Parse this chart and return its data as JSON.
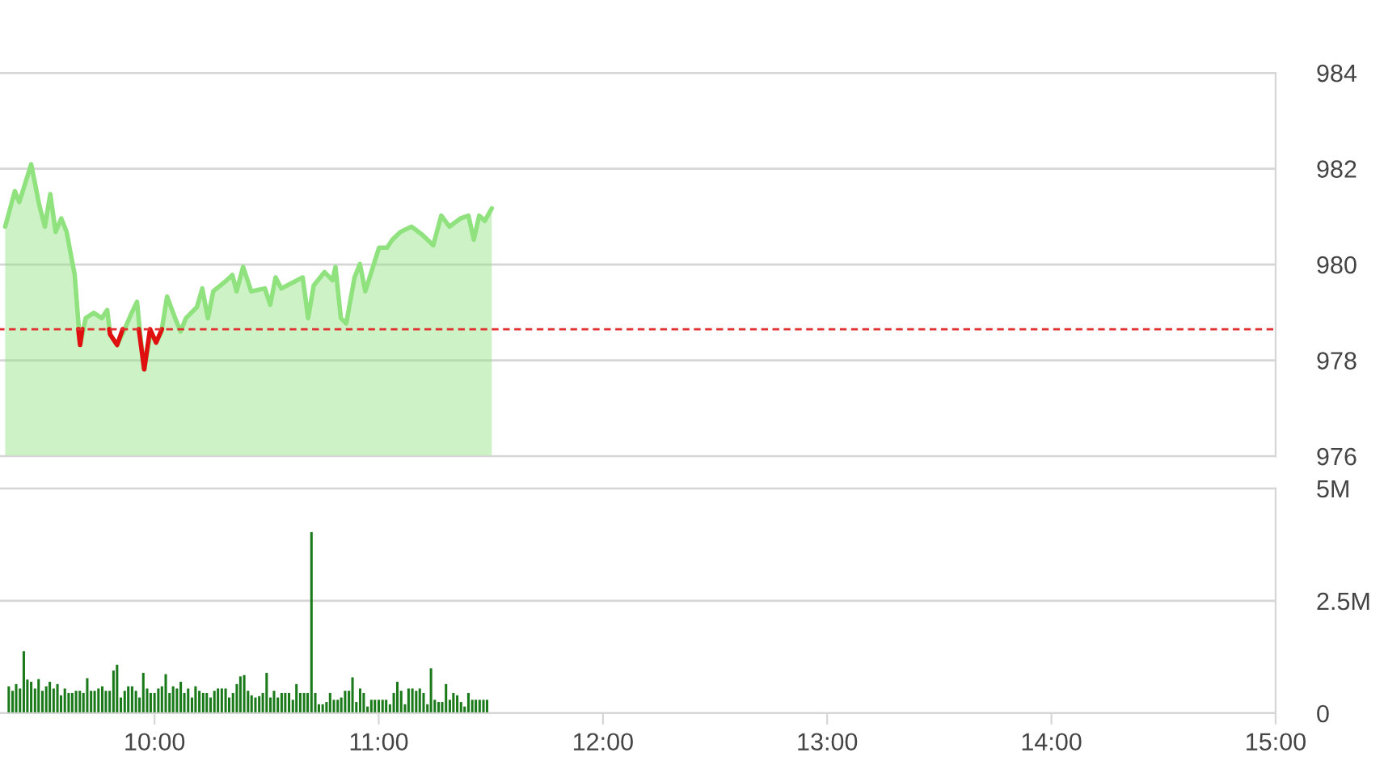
{
  "chart_data": [
    {
      "type": "area",
      "x": [
        9.334,
        9.377,
        9.397,
        9.45,
        9.486,
        9.511,
        9.535,
        9.559,
        9.584,
        9.608,
        9.644,
        9.668,
        9.693,
        9.729,
        9.765,
        9.789,
        9.802,
        9.833,
        9.862,
        9.898,
        9.922,
        9.935,
        9.954,
        9.983,
        10.007,
        10.031,
        10.056,
        10.092,
        10.116,
        10.14,
        10.189,
        10.213,
        10.238,
        10.262,
        10.322,
        10.347,
        10.366,
        10.395,
        10.431,
        10.492,
        10.516,
        10.54,
        10.565,
        10.661,
        10.685,
        10.71,
        10.758,
        10.794,
        10.807,
        10.831,
        10.855,
        10.892,
        10.916,
        10.94,
        11.001,
        11.037,
        11.061,
        11.097,
        11.146,
        11.194,
        11.243,
        11.279,
        11.315,
        11.364,
        11.4,
        11.424,
        11.448,
        11.473,
        11.504
      ],
      "series": [
        {
          "type": "area",
          "color": "#90e27f",
          "values": [
            980.79,
            981.53,
            981.3,
            982.09,
            981.24,
            980.79,
            981.47,
            980.68,
            980.96,
            980.68,
            979.78,
            978.32,
            978.88,
            978.99,
            978.88,
            979.05,
            978.54,
            978.32,
            978.6,
            978.99,
            979.22,
            978.6,
            977.81,
            978.6,
            978.37,
            978.6,
            979.33,
            978.88,
            978.6,
            978.88,
            979.11,
            979.5,
            978.88,
            979.44,
            979.67,
            979.78,
            979.44,
            979.95,
            979.44,
            979.5,
            979.16,
            979.73,
            979.5,
            979.73,
            978.88,
            979.56,
            979.84,
            979.67,
            979.95,
            978.88,
            978.77,
            979.73,
            980.01,
            979.44,
            980.35,
            980.35,
            980.52,
            980.68,
            980.79,
            980.62,
            980.4,
            981.02,
            980.79,
            980.96,
            981.02,
            980.52,
            981.02,
            980.91,
            981.17
          ]
        },
        {
          "type": "line",
          "color": "#e01010",
          "x": [
            9.66,
            9.668,
            9.678,
            9.69,
            9.798,
            9.802,
            9.833,
            9.858,
            9.9,
            9.93,
            9.954,
            9.98,
            10.007,
            10.033
          ],
          "values": [
            978.65,
            978.32,
            978.65,
            null,
            978.65,
            978.54,
            978.32,
            978.65,
            null,
            978.65,
            977.81,
            978.65,
            978.37,
            978.65
          ]
        }
      ],
      "xlim": [
        9.28,
        15
      ],
      "ylim": [
        976,
        984
      ],
      "yticks": [
        976,
        978,
        980,
        982,
        984
      ],
      "tick_labels": "y",
      "grid": "y",
      "ref_lines": [
        {
          "axis": "y",
          "value": 978.65,
          "color": "#e03030",
          "line_style": "dashed"
        }
      ]
    },
    {
      "type": "bar",
      "x": [
        9.35,
        9.367,
        9.383,
        9.4,
        9.417,
        9.433,
        9.45,
        9.467,
        9.483,
        9.5,
        9.517,
        9.533,
        9.55,
        9.567,
        9.583,
        9.6,
        9.617,
        9.633,
        9.65,
        9.667,
        9.683,
        9.7,
        9.717,
        9.733,
        9.75,
        9.767,
        9.783,
        9.8,
        9.817,
        9.833,
        9.85,
        9.867,
        9.883,
        9.9,
        9.917,
        9.933,
        9.95,
        9.967,
        9.983,
        10.0,
        10.017,
        10.033,
        10.05,
        10.067,
        10.083,
        10.1,
        10.117,
        10.133,
        10.15,
        10.167,
        10.183,
        10.2,
        10.217,
        10.233,
        10.25,
        10.267,
        10.283,
        10.3,
        10.317,
        10.333,
        10.35,
        10.367,
        10.383,
        10.4,
        10.417,
        10.433,
        10.45,
        10.467,
        10.483,
        10.5,
        10.517,
        10.533,
        10.55,
        10.567,
        10.583,
        10.6,
        10.617,
        10.633,
        10.65,
        10.667,
        10.683,
        10.7,
        10.717,
        10.733,
        10.75,
        10.767,
        10.783,
        10.8,
        10.817,
        10.833,
        10.85,
        10.867,
        10.883,
        10.9,
        10.917,
        10.933,
        10.95,
        10.967,
        10.983,
        11.0,
        11.017,
        11.033,
        11.05,
        11.067,
        11.083,
        11.1,
        11.117,
        11.133,
        11.15,
        11.167,
        11.183,
        11.2,
        11.217,
        11.233,
        11.25,
        11.267,
        11.283,
        11.3,
        11.317,
        11.333,
        11.35,
        11.367,
        11.383,
        11.4,
        11.417,
        11.433,
        11.45,
        11.467,
        11.483
      ],
      "values": [
        0.6,
        0.5,
        0.65,
        0.55,
        1.38,
        0.75,
        0.7,
        0.55,
        0.76,
        0.5,
        0.6,
        0.7,
        0.55,
        0.65,
        0.4,
        0.55,
        0.45,
        0.45,
        0.5,
        0.5,
        0.45,
        0.78,
        0.5,
        0.5,
        0.55,
        0.6,
        0.5,
        0.5,
        0.95,
        1.08,
        0.35,
        0.5,
        0.6,
        0.6,
        0.5,
        0.35,
        0.9,
        0.55,
        0.45,
        0.45,
        0.55,
        0.6,
        0.87,
        0.45,
        0.6,
        0.55,
        0.7,
        0.45,
        0.55,
        0.35,
        0.6,
        0.5,
        0.45,
        0.45,
        0.35,
        0.5,
        0.55,
        0.55,
        0.55,
        0.35,
        0.45,
        0.65,
        0.82,
        0.85,
        0.5,
        0.4,
        0.35,
        0.38,
        0.45,
        0.9,
        0.35,
        0.5,
        0.35,
        0.45,
        0.45,
        0.45,
        0.3,
        0.65,
        0.45,
        0.45,
        0.45,
        4.03,
        0.45,
        0.2,
        0.2,
        0.25,
        0.45,
        0.3,
        0.3,
        0.35,
        0.5,
        0.5,
        0.8,
        0.25,
        0.55,
        0.45,
        0.15,
        0.3,
        0.3,
        0.3,
        0.3,
        0.3,
        0.2,
        0.45,
        0.7,
        0.5,
        0.2,
        0.55,
        0.55,
        0.5,
        0.55,
        0.45,
        0.2,
        1.0,
        0.3,
        0.25,
        0.25,
        0.65,
        0.3,
        0.45,
        0.4,
        0.25,
        0.15,
        0.45,
        0.3,
        0.3,
        0.3,
        0.3,
        0.3
      ],
      "color": "#1a7a1a",
      "xlim": [
        9.28,
        15
      ],
      "xticks": [
        {
          "value": 10,
          "label": "10:00"
        },
        {
          "value": 11,
          "label": "11:00"
        },
        {
          "value": 12,
          "label": "12:00"
        },
        {
          "value": 13,
          "label": "13:00"
        },
        {
          "value": 14,
          "label": "14:00"
        },
        {
          "value": 15,
          "label": "15:00"
        }
      ],
      "ylim": [
        0,
        5
      ],
      "yticks": [
        0,
        {
          "value": 2.5,
          "label": "2.5M"
        },
        {
          "value": 5,
          "label": "5M"
        }
      ],
      "grid": "y"
    }
  ]
}
